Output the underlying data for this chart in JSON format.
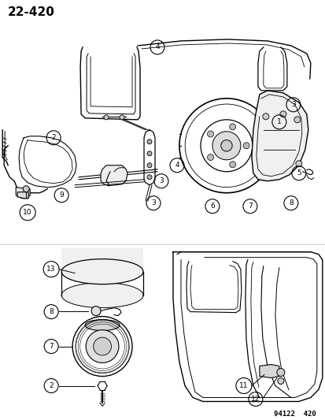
{
  "title": "22-420",
  "catalog_number": "94122  420",
  "bg_color": "#ffffff",
  "line_color": "#000000",
  "title_fontsize": 11,
  "fig_width": 4.14,
  "fig_height": 5.33,
  "dpi": 100
}
